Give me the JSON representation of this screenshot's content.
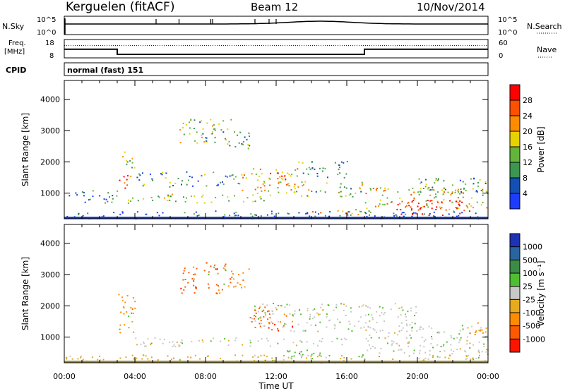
{
  "header": {
    "station": "Kerguelen (fitACF)",
    "beam": "Beam 12",
    "date": "10/Nov/2014"
  },
  "strips": {
    "nsky_label": "N.Sky",
    "nsky_ticks": [
      "10^5",
      "10^0"
    ],
    "nsearch_label": "N.Search",
    "nsearch_ticks": [
      "10^5",
      "10^0"
    ],
    "freq_label_1": "Freq.",
    "freq_label_2": "[MHz]",
    "freq_ticks": [
      "18",
      "8"
    ],
    "nave_label": "Nave",
    "nave_ticks": [
      "60",
      "0"
    ],
    "cpid_label": "CPID",
    "cpid_value": "normal (fast) 151"
  },
  "colors": {
    "power": [
      "#1e3cff",
      "#1450b4",
      "#3c9650",
      "#64b43c",
      "#e6d200",
      "#ff8c00",
      "#ff5000",
      "#ff0000"
    ],
    "velocity": [
      "#1e32b4",
      "#2864a0",
      "#3c8c46",
      "#50be32",
      "#c8c8c8",
      "#e6aa1e",
      "#ff8c00",
      "#ff5a00",
      "#ff1400"
    ],
    "ground_scatter": "#c0c0c0"
  },
  "chart_data": [
    {
      "type": "heatmap",
      "panel": "power",
      "title": "",
      "xlabel": "Time UT",
      "ylabel": "Slant Range [km]",
      "x_ticks": [
        "00:00",
        "04:00",
        "08:00",
        "12:00",
        "16:00",
        "20:00",
        "00:00"
      ],
      "xlim_hours": [
        0,
        24
      ],
      "y_ticks": [
        "1000",
        "2000",
        "3000",
        "4000"
      ],
      "ylim_km": [
        180,
        4600
      ],
      "colorbar_label": "Power [dB]",
      "colorbar_ticks": [
        "4",
        "8",
        "12",
        "16",
        "20",
        "24",
        "28"
      ],
      "colorbar_range_db": [
        0,
        32
      ],
      "echo_regions": [
        {
          "t0": 0.0,
          "t1": 24.0,
          "r0": 200,
          "r1": 450,
          "level": 0.18
        },
        {
          "t0": 0.2,
          "t1": 3.0,
          "r0": 700,
          "r1": 1100,
          "level": 0.25
        },
        {
          "t0": 3.0,
          "t1": 3.8,
          "r0": 1100,
          "r1": 1600,
          "level": 0.85
        },
        {
          "t0": 3.2,
          "t1": 4.0,
          "r0": 1800,
          "r1": 2400,
          "level": 0.45
        },
        {
          "t0": 3.5,
          "t1": 12.0,
          "r0": 700,
          "r1": 1000,
          "level": 0.5
        },
        {
          "t0": 6.5,
          "t1": 9.5,
          "r0": 2600,
          "r1": 3400,
          "level": 0.45
        },
        {
          "t0": 9.0,
          "t1": 10.5,
          "r0": 2400,
          "r1": 3000,
          "level": 0.35
        },
        {
          "t0": 4.0,
          "t1": 10.0,
          "r0": 1200,
          "r1": 1700,
          "level": 0.3
        },
        {
          "t0": 10.0,
          "t1": 13.5,
          "r0": 1000,
          "r1": 1800,
          "level": 0.65
        },
        {
          "t0": 11.3,
          "t1": 12.5,
          "r0": 1300,
          "r1": 1700,
          "level": 0.95
        },
        {
          "t0": 12.0,
          "t1": 17.0,
          "r0": 900,
          "r1": 1400,
          "level": 0.45
        },
        {
          "t0": 13.0,
          "t1": 16.0,
          "r0": 1500,
          "r1": 2100,
          "level": 0.3
        },
        {
          "t0": 14.0,
          "t1": 17.0,
          "r0": 300,
          "r1": 500,
          "level": 0.7
        },
        {
          "t0": 17.0,
          "t1": 24.0,
          "r0": 500,
          "r1": 1200,
          "level": 0.6
        },
        {
          "t0": 18.5,
          "t1": 23.0,
          "r0": 300,
          "r1": 800,
          "level": 0.95
        },
        {
          "t0": 20.0,
          "t1": 24.0,
          "r0": 900,
          "r1": 1500,
          "level": 0.3
        }
      ]
    },
    {
      "type": "heatmap",
      "panel": "velocity",
      "title": "",
      "xlabel": "Time UT",
      "ylabel": "Slant Range [km]",
      "x_ticks": [
        "00:00",
        "04:00",
        "08:00",
        "12:00",
        "16:00",
        "20:00",
        "00:00"
      ],
      "xlim_hours": [
        0,
        24
      ],
      "y_ticks": [
        "1000",
        "2000",
        "3000",
        "4000"
      ],
      "ylim_km": [
        180,
        4600
      ],
      "colorbar_label": "Velocity [m s⁻¹]",
      "colorbar_ticks": [
        "1000",
        "500",
        "100",
        "25",
        "-25",
        "-100",
        "-500",
        "-1000"
      ],
      "echo_regions": [
        {
          "t0": 0.0,
          "t1": 24.0,
          "r0": 200,
          "r1": 450,
          "cls": 5
        },
        {
          "t0": 3.0,
          "t1": 4.0,
          "r0": 1100,
          "r1": 2400,
          "cls": 6
        },
        {
          "t0": 4.0,
          "t1": 16.0,
          "r0": 700,
          "r1": 1000,
          "cls": 4
        },
        {
          "t0": 6.5,
          "t1": 9.5,
          "r0": 2400,
          "r1": 3400,
          "cls": 7
        },
        {
          "t0": 9.0,
          "t1": 10.5,
          "r0": 2600,
          "r1": 3200,
          "cls": 6
        },
        {
          "t0": 10.5,
          "t1": 13.0,
          "r0": 1200,
          "r1": 2100,
          "cls": 7
        },
        {
          "t0": 10.5,
          "t1": 20.0,
          "r0": 1200,
          "r1": 2100,
          "cls": 4
        },
        {
          "t0": 12.0,
          "t1": 17.0,
          "r0": 300,
          "r1": 600,
          "cls": 3
        },
        {
          "t0": 17.0,
          "t1": 24.0,
          "r0": 500,
          "r1": 1400,
          "cls": 4
        },
        {
          "t0": 20.0,
          "t1": 24.0,
          "r0": 300,
          "r1": 600,
          "cls": 4
        },
        {
          "t0": 22.5,
          "t1": 24.0,
          "r0": 1100,
          "r1": 1500,
          "cls": 6
        }
      ]
    }
  ],
  "series": {
    "freq_mhz": {
      "x": [
        0,
        3,
        3,
        17,
        17,
        24
      ],
      "y": [
        12.7,
        12.7,
        9.9,
        9.9,
        12.7,
        12.7
      ]
    },
    "nave": {
      "x": [
        0,
        24
      ],
      "y": [
        40,
        40
      ]
    }
  }
}
